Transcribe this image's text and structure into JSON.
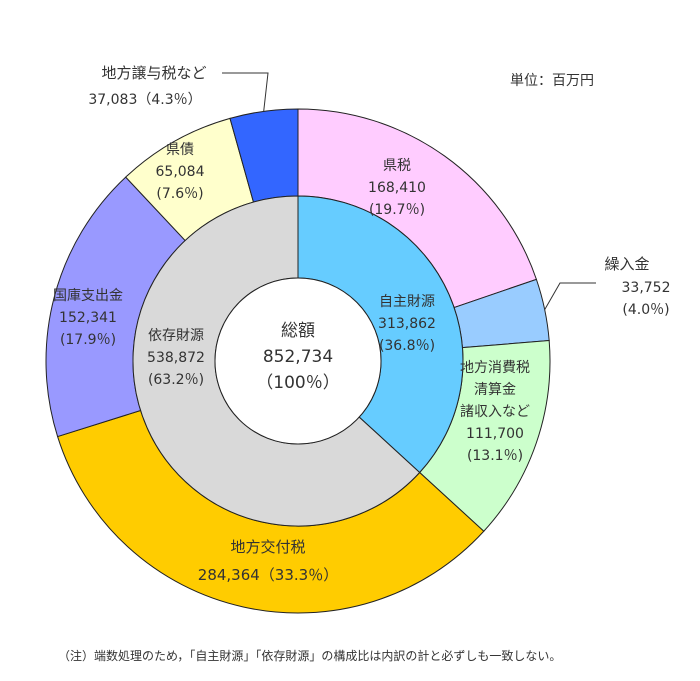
{
  "chart_data": {
    "type": "pie",
    "unit": "単位：百万円",
    "total": {
      "label": "総額",
      "value": "852,734",
      "pct": "（100％）",
      "numeric": 852734
    },
    "inner_ring": [
      {
        "name": "自主財源",
        "value": 313862,
        "value_label": "313,862",
        "pct": "(36.8％)",
        "color": "#66CCFF"
      },
      {
        "name": "依存財源",
        "value": 538872,
        "value_label": "538,872",
        "pct": "(63.2％)",
        "color": "#D9D9D9"
      }
    ],
    "outer_ring": [
      {
        "name": "県税",
        "value": 168410,
        "value_label": "168,410",
        "pct": "(19.7％)",
        "color": "#FFCCFF"
      },
      {
        "name": "繰入金",
        "value": 33752,
        "value_label": "33,752",
        "pct": "(4.0％)",
        "color": "#99CCFF"
      },
      {
        "name": "地方消費税清算金諸収入など",
        "lines": [
          "地方消費税",
          "清算金",
          "諸収入など"
        ],
        "value": 111700,
        "value_label": "111,700",
        "pct": "(13.1％)",
        "color": "#CCFFCC"
      },
      {
        "name": "地方交付税",
        "value": 284364,
        "value_label": "284,364",
        "pct": "（33.3％）",
        "color": "#FFCC00"
      },
      {
        "name": "国庫支出金",
        "value": 152341,
        "value_label": "152,341",
        "pct": "(17.9％)",
        "color": "#9999FF"
      },
      {
        "name": "県債",
        "value": 65084,
        "value_label": "65,084",
        "pct": "(7.6％)",
        "color": "#FFFFCC"
      },
      {
        "name": "地方譲与税など",
        "value": 37083,
        "value_label": "37,083",
        "pct": "（4.3％）",
        "color": "#3366FF"
      }
    ],
    "footnote": "（注）端数処理のため，「自主財源」「依存財源」の構成比は内訳の計と必ずしも一致しない。"
  }
}
